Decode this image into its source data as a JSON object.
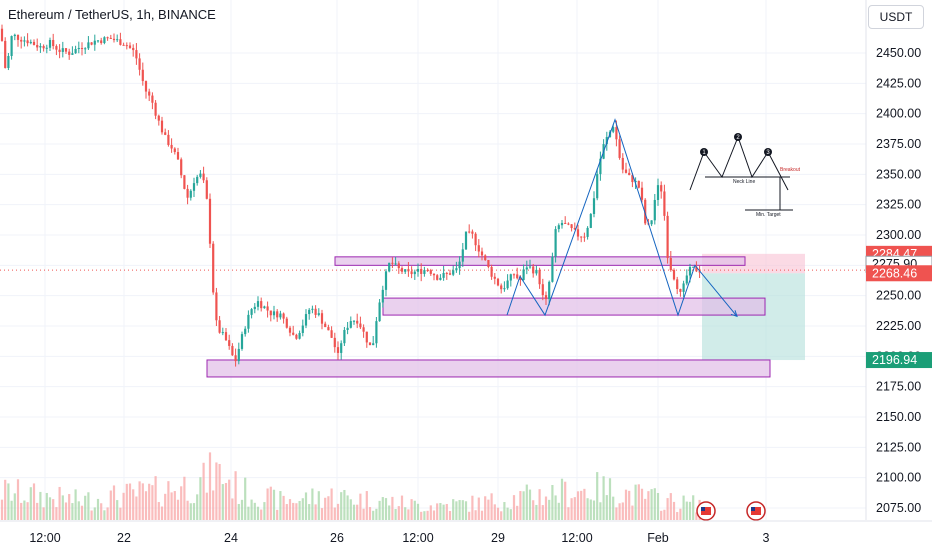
{
  "header": {
    "title": "Ethereum / TetherUS, 1h, BINANCE",
    "currency_button": "USDT"
  },
  "colors": {
    "up": "#26a69a",
    "down": "#ef5350",
    "zone_fill": "#e1bee7",
    "zone_stroke": "#9c27b0",
    "pattern_line": "#1565c0",
    "stop_zone": "#f8bbd0",
    "target_zone": "#b2dfdb"
  },
  "chart_data": {
    "type": "candlestick",
    "symbol": "Ethereum / TetherUS",
    "interval": "1h",
    "exchange": "BINANCE",
    "y_axis": {
      "ticks": [
        "2450.00",
        "2425.00",
        "2400.00",
        "2375.00",
        "2350.00",
        "2325.00",
        "2300.00",
        "2275.00",
        "2250.00",
        "2225.00",
        "2200.00",
        "2175.00",
        "2150.00",
        "2125.00",
        "2100.00",
        "2075.00"
      ],
      "range": [
        2062,
        2475
      ]
    },
    "x_axis": {
      "ticks": [
        "12:00",
        "22",
        "24",
        "26",
        "12:00",
        "29",
        "12:00",
        "Feb",
        "3"
      ]
    },
    "price_tags": [
      {
        "label": "2284.47",
        "value": 2284.47,
        "kind": "stop"
      },
      {
        "label": "2275.90",
        "value": 2275.9,
        "kind": "current"
      },
      {
        "label": "2268.46",
        "value": 2268.46,
        "kind": "entry"
      },
      {
        "label": "2196.94",
        "value": 2196.94,
        "kind": "target"
      }
    ],
    "price_path": [
      [
        0,
        2470
      ],
      [
        3,
        2455
      ],
      [
        5,
        2440
      ],
      [
        7,
        2420
      ],
      [
        8,
        2445
      ],
      [
        12,
        2465
      ],
      [
        20,
        2462
      ],
      [
        28,
        2460
      ],
      [
        40,
        2455
      ],
      [
        50,
        2458
      ],
      [
        60,
        2452
      ],
      [
        70,
        2450
      ],
      [
        80,
        2455
      ],
      [
        95,
        2460
      ],
      [
        110,
        2462
      ],
      [
        125,
        2458
      ],
      [
        135,
        2450
      ],
      [
        145,
        2420
      ],
      [
        152,
        2410
      ],
      [
        158,
        2395
      ],
      [
        165,
        2380
      ],
      [
        172,
        2372
      ],
      [
        178,
        2360
      ],
      [
        184,
        2340
      ],
      [
        188,
        2330
      ],
      [
        194,
        2345
      ],
      [
        200,
        2350
      ],
      [
        205,
        2340
      ],
      [
        208,
        2320
      ],
      [
        212,
        2270
      ],
      [
        215,
        2230
      ],
      [
        220,
        2220
      ],
      [
        225,
        2215
      ],
      [
        230,
        2205
      ],
      [
        235,
        2195
      ],
      [
        240,
        2210
      ],
      [
        245,
        2225
      ],
      [
        252,
        2240
      ],
      [
        258,
        2245
      ],
      [
        265,
        2240
      ],
      [
        272,
        2235
      ],
      [
        280,
        2235
      ],
      [
        288,
        2225
      ],
      [
        295,
        2215
      ],
      [
        302,
        2225
      ],
      [
        310,
        2240
      ],
      [
        318,
        2235
      ],
      [
        325,
        2225
      ],
      [
        332,
        2215
      ],
      [
        338,
        2200
      ],
      [
        342,
        2215
      ],
      [
        350,
        2230
      ],
      [
        358,
        2230
      ],
      [
        366,
        2215
      ],
      [
        372,
        2205
      ],
      [
        378,
        2240
      ],
      [
        384,
        2262
      ],
      [
        390,
        2278
      ],
      [
        398,
        2272
      ],
      [
        408,
        2268
      ],
      [
        418,
        2270
      ],
      [
        428,
        2272
      ],
      [
        438,
        2265
      ],
      [
        448,
        2268
      ],
      [
        458,
        2272
      ],
      [
        466,
        2300
      ],
      [
        472,
        2300
      ],
      [
        478,
        2290
      ],
      [
        484,
        2280
      ],
      [
        490,
        2270
      ],
      [
        496,
        2262
      ],
      [
        502,
        2255
      ],
      [
        508,
        2262
      ],
      [
        514,
        2268
      ],
      [
        520,
        2262
      ],
      [
        526,
        2275
      ],
      [
        532,
        2272
      ],
      [
        538,
        2268
      ],
      [
        545,
        2240
      ],
      [
        550,
        2265
      ],
      [
        556,
        2305
      ],
      [
        562,
        2310
      ],
      [
        570,
        2305
      ],
      [
        578,
        2300
      ],
      [
        585,
        2300
      ],
      [
        592,
        2320
      ],
      [
        598,
        2355
      ],
      [
        604,
        2375
      ],
      [
        610,
        2385
      ],
      [
        614,
        2392
      ],
      [
        618,
        2370
      ],
      [
        622,
        2355
      ],
      [
        628,
        2348
      ],
      [
        634,
        2345
      ],
      [
        640,
        2338
      ],
      [
        645,
        2310
      ],
      [
        650,
        2305
      ],
      [
        655,
        2330
      ],
      [
        660,
        2345
      ],
      [
        664,
        2320
      ],
      [
        668,
        2280
      ],
      [
        672,
        2270
      ],
      [
        676,
        2262
      ],
      [
        680,
        2250
      ],
      [
        684,
        2258
      ],
      [
        688,
        2270
      ],
      [
        694,
        2272
      ],
      [
        700,
        2271
      ]
    ],
    "volume": [
      {
        "x": 0,
        "v": 0.6
      },
      {
        "x": 40,
        "v": 0.5
      },
      {
        "x": 80,
        "v": 0.4
      },
      {
        "x": 120,
        "v": 0.5
      },
      {
        "x": 160,
        "v": 0.6
      },
      {
        "x": 205,
        "v": 0.8
      },
      {
        "x": 213,
        "v": 1.0
      },
      {
        "x": 225,
        "v": 0.9
      },
      {
        "x": 240,
        "v": 0.6
      },
      {
        "x": 280,
        "v": 0.4
      },
      {
        "x": 330,
        "v": 0.5
      },
      {
        "x": 380,
        "v": 0.4
      },
      {
        "x": 420,
        "v": 0.3
      },
      {
        "x": 480,
        "v": 0.35
      },
      {
        "x": 550,
        "v": 0.55
      },
      {
        "x": 600,
        "v": 0.65
      },
      {
        "x": 640,
        "v": 0.5
      },
      {
        "x": 680,
        "v": 0.35
      }
    ],
    "zones": [
      {
        "label": "upper-zone",
        "x0": 335,
        "x1": 745,
        "y_top": 2282,
        "y_bot": 2275
      },
      {
        "label": "middle-zone",
        "x0": 383,
        "x1": 765,
        "y_top": 2248,
        "y_bot": 2234
      },
      {
        "label": "lower-zone",
        "x0": 207,
        "x1": 770,
        "y_top": 2197,
        "y_bot": 2183
      }
    ],
    "position_tool": {
      "x0": 702,
      "x1": 805,
      "entry": 2268.46,
      "stop": 2284.47,
      "target": 2196.94
    },
    "pattern_points": [
      [
        507,
        2234
      ],
      [
        520,
        2266
      ],
      [
        545,
        2234
      ],
      [
        615,
        2395
      ],
      [
        678,
        2234
      ],
      [
        695,
        2275
      ],
      [
        737,
        2233
      ]
    ],
    "legend_diagram": {
      "labels": [
        "1",
        "2",
        "3",
        "Breakout",
        "Neck Line",
        "Min. Target"
      ]
    }
  }
}
